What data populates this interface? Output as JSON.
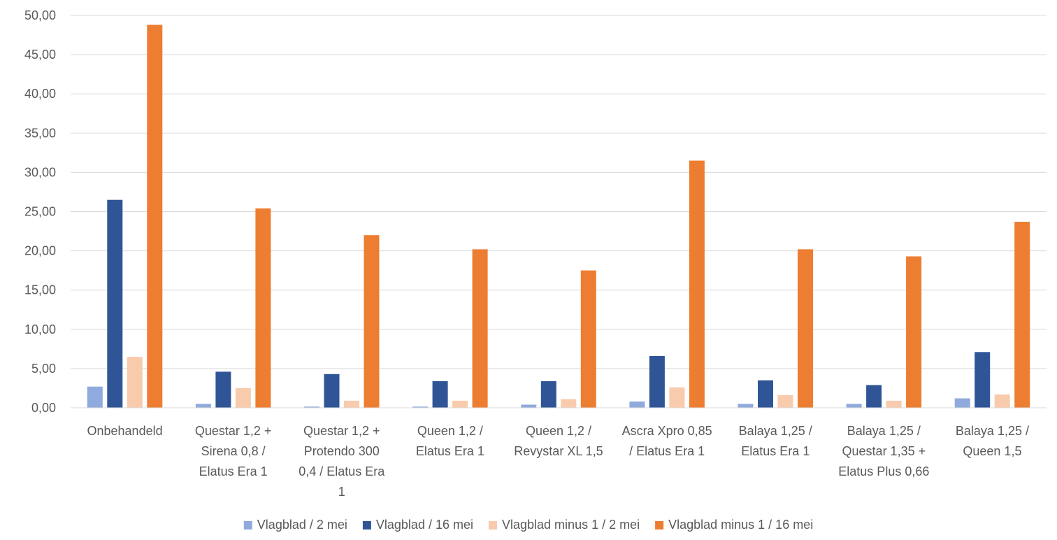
{
  "chart_data": {
    "type": "bar",
    "title": "",
    "xlabel": "",
    "ylabel": "",
    "ylim": [
      0,
      50
    ],
    "y_tick_step": 5,
    "y_tick_labels": [
      "0,00",
      "5,00",
      "10,00",
      "15,00",
      "20,00",
      "25,00",
      "30,00",
      "35,00",
      "40,00",
      "45,00",
      "50,00"
    ],
    "grid": true,
    "legend_position": "bottom",
    "categories": [
      [
        "Onbehandeld"
      ],
      [
        "Questar 1,2 +",
        "Sirena 0,8 /",
        "Elatus Era 1"
      ],
      [
        "Questar 1,2 +",
        "Protendo 300",
        "0,4 / Elatus Era",
        "1"
      ],
      [
        "Queen 1,2 /",
        "Elatus Era 1"
      ],
      [
        "Queen 1,2 /",
        "Revystar XL 1,5"
      ],
      [
        "Ascra Xpro 0,85",
        "/ Elatus Era 1"
      ],
      [
        "Balaya 1,25 /",
        "Elatus Era 1"
      ],
      [
        "Balaya 1,25 /",
        "Questar 1,35 +",
        "Elatus Plus 0,66"
      ],
      [
        "Balaya 1,25 /",
        "Queen 1,5"
      ]
    ],
    "series": [
      {
        "name": "Vlagblad / 2 mei",
        "color": "#8faadc",
        "values": [
          2.7,
          0.5,
          0.15,
          0.15,
          0.4,
          0.8,
          0.5,
          0.5,
          1.2
        ]
      },
      {
        "name": "Vlagblad / 16 mei",
        "color": "#2f5597",
        "values": [
          26.5,
          4.6,
          4.3,
          3.4,
          3.4,
          6.6,
          3.5,
          2.9,
          7.1
        ]
      },
      {
        "name": "Vlagblad minus 1 / 2 mei",
        "color": "#f8cbad",
        "values": [
          6.5,
          2.5,
          0.9,
          0.9,
          1.1,
          2.6,
          1.6,
          0.9,
          1.7
        ]
      },
      {
        "name": "Vlagblad minus 1 / 16 mei",
        "color": "#ed7d31",
        "values": [
          48.8,
          25.4,
          22.0,
          20.2,
          17.5,
          31.5,
          20.2,
          19.3,
          23.7
        ]
      }
    ]
  }
}
